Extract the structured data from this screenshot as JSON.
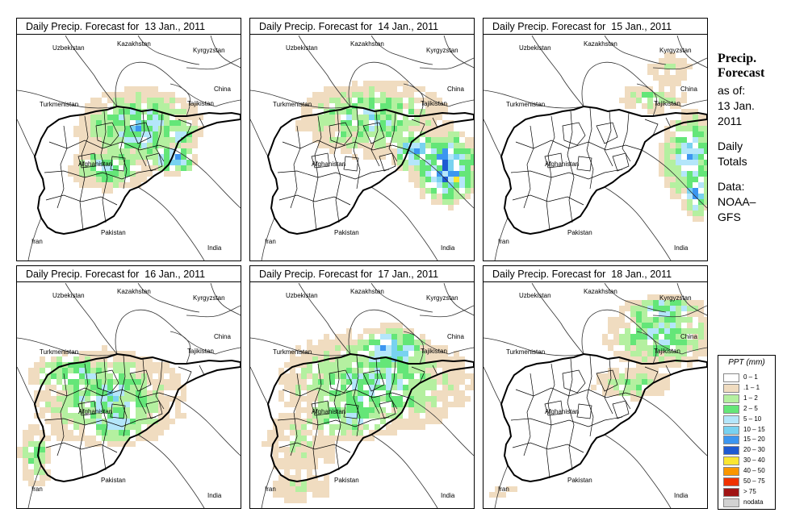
{
  "panels": [
    {
      "title": "Daily Precip. Forecast for  13 Jan., 2011"
    },
    {
      "title": "Daily Precip. Forecast for  14 Jan., 2011"
    },
    {
      "title": "Daily Precip. Forecast for  15 Jan., 2011"
    },
    {
      "title": "Daily Precip. Forecast for  16 Jan., 2011"
    },
    {
      "title": "Daily Precip. Forecast for  17 Jan., 2011"
    },
    {
      "title": "Daily Precip. Forecast for  18 Jan., 2011"
    }
  ],
  "country_labels": {
    "kazakhstan": "Kazakhstan",
    "uzbekistan": "Uzbekistan",
    "kyrgyzstan": "Kyrgyzstan",
    "turkmenistan": "Turkmenistan",
    "tajikistan": "Tajikistan",
    "china": "China",
    "afghanistan": "Afghanistan",
    "iran": "Iran",
    "pakistan": "Pakistan",
    "india": "India"
  },
  "sidebar": {
    "title_line1": "Precip.",
    "title_line2": "Forecast",
    "as_of": "as of:",
    "date_line1": "13 Jan.",
    "date_line2": "2011",
    "totals_line1": "Daily",
    "totals_line2": "Totals",
    "data_line1": "Data:",
    "data_line2": "NOAA–",
    "data_line3": "GFS"
  },
  "legend": {
    "title": "PPT (mm)",
    "items": [
      {
        "label": "0 – 1",
        "color": "#ffffff"
      },
      {
        "label": ".1 – 1",
        "color": "#f0dcc0"
      },
      {
        "label": "1 – 2",
        "color": "#b4f0a0"
      },
      {
        "label": "2 – 5",
        "color": "#64e678"
      },
      {
        "label": "5 – 10",
        "color": "#b4e6fa"
      },
      {
        "label": "10 – 15",
        "color": "#78d2f0"
      },
      {
        "label": "15 – 20",
        "color": "#3c96f0"
      },
      {
        "label": "20 – 30",
        "color": "#1e5ad2"
      },
      {
        "label": "30 – 40",
        "color": "#fae632"
      },
      {
        "label": "40 – 50",
        "color": "#fa9600"
      },
      {
        "label": "50 – 75",
        "color": "#f03200"
      },
      {
        "label": "> 75",
        "color": "#a01414"
      },
      {
        "label": "nodata",
        "color": "#d2d2d2"
      }
    ]
  }
}
